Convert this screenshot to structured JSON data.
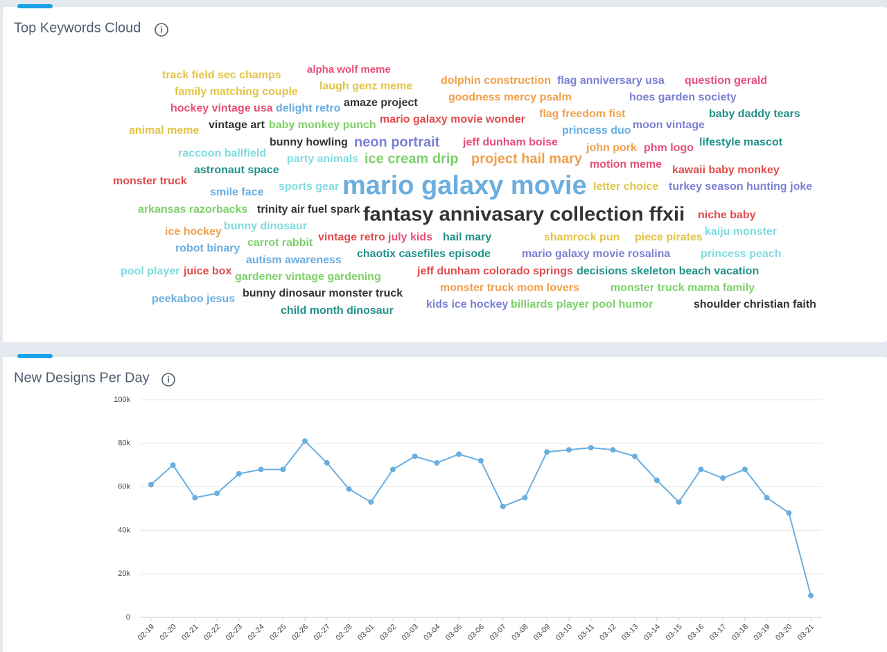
{
  "keyword_cloud": {
    "title": "Top Keywords Cloud",
    "keywords": [
      {
        "text": "track field sec champs",
        "color": "#e2c447"
      },
      {
        "text": "alpha wolf meme",
        "color": "#e6507a"
      },
      {
        "text": "dolphin construction",
        "color": "#f0a04b"
      },
      {
        "text": "flag anniversary usa",
        "color": "#7b7fd4"
      },
      {
        "text": "question gerald",
        "color": "#e6507a"
      },
      {
        "text": "family matching couple",
        "color": "#e2c447"
      },
      {
        "text": "laugh genz meme",
        "color": "#e2c447"
      },
      {
        "text": "goodness mercy psalm",
        "color": "#f0a04b"
      },
      {
        "text": "hoes garden society",
        "color": "#7b7fd4"
      },
      {
        "text": "hockey vintage usa",
        "color": "#e6507a"
      },
      {
        "text": "delight retro",
        "color": "#6aaee0"
      },
      {
        "text": "amaze project",
        "color": "#333333"
      },
      {
        "text": "flag freedom fist",
        "color": "#f0a04b"
      },
      {
        "text": "baby daddy tears",
        "color": "#22918a"
      },
      {
        "text": "mario galaxy movie wonder",
        "color": "#e04c4c"
      },
      {
        "text": "animal meme",
        "color": "#e2c447"
      },
      {
        "text": "vintage art",
        "color": "#333333"
      },
      {
        "text": "baby monkey punch",
        "color": "#7ed06b"
      },
      {
        "text": "princess duo",
        "color": "#6aaee0"
      },
      {
        "text": "moon vintage",
        "color": "#7b7fd4"
      },
      {
        "text": "bunny howling",
        "color": "#333333"
      },
      {
        "text": "neon portrait",
        "color": "#7b7fd4"
      },
      {
        "text": "jeff dunham boise",
        "color": "#e6507a"
      },
      {
        "text": "john pork",
        "color": "#f0a04b"
      },
      {
        "text": "phm logo",
        "color": "#e6507a"
      },
      {
        "text": "lifestyle mascot",
        "color": "#22918a"
      },
      {
        "text": "raccoon ballfield",
        "color": "#7fdbe0"
      },
      {
        "text": "party animals",
        "color": "#7fdbe0"
      },
      {
        "text": "ice cream drip",
        "color": "#7ed06b"
      },
      {
        "text": "project hail mary",
        "color": "#f0a04b"
      },
      {
        "text": "motion meme",
        "color": "#e6507a"
      },
      {
        "text": "kawaii baby monkey",
        "color": "#e04c4c"
      },
      {
        "text": "astronaut space",
        "color": "#22918a"
      },
      {
        "text": "monster truck",
        "color": "#e04c4c"
      },
      {
        "text": "smile face",
        "color": "#6aaee0"
      },
      {
        "text": "sports gear",
        "color": "#7fdbe0"
      },
      {
        "text": "mario galaxy movie",
        "color": "#6aaee0"
      },
      {
        "text": "letter choice",
        "color": "#e2c447"
      },
      {
        "text": "turkey season hunting joke",
        "color": "#7b7fd4"
      },
      {
        "text": "arkansas razorbacks",
        "color": "#7ed06b"
      },
      {
        "text": "trinity air fuel spark",
        "color": "#333333"
      },
      {
        "text": "fantasy annivasary collection ffxii",
        "color": "#333333"
      },
      {
        "text": "niche baby",
        "color": "#e04c4c"
      },
      {
        "text": "ice hockey",
        "color": "#f0a04b"
      },
      {
        "text": "bunny dinosaur",
        "color": "#7fdbe0"
      },
      {
        "text": "kaiju monster",
        "color": "#7fdbe0"
      },
      {
        "text": "robot binary",
        "color": "#6aaee0"
      },
      {
        "text": "carrot rabbit",
        "color": "#7ed06b"
      },
      {
        "text": "vintage retro",
        "color": "#e04c4c"
      },
      {
        "text": "july kids",
        "color": "#e6507a"
      },
      {
        "text": "hail mary",
        "color": "#22918a"
      },
      {
        "text": "shamrock pun",
        "color": "#e2c447"
      },
      {
        "text": "piece pirates",
        "color": "#e2c447"
      },
      {
        "text": "autism awareness",
        "color": "#6aaee0"
      },
      {
        "text": "chaotix casefiles episode",
        "color": "#22918a"
      },
      {
        "text": "mario galaxy movie rosalina",
        "color": "#7b7fd4"
      },
      {
        "text": "princess peach",
        "color": "#7fdbe0"
      },
      {
        "text": "pool player",
        "color": "#7fdbe0"
      },
      {
        "text": "juice box",
        "color": "#e04c4c"
      },
      {
        "text": "gardener vintage gardening",
        "color": "#7ed06b"
      },
      {
        "text": "jeff dunham colorado springs",
        "color": "#e04c4c"
      },
      {
        "text": "decisions skeleton beach vacation",
        "color": "#22918a"
      },
      {
        "text": "monster truck mom lovers",
        "color": "#f0a04b"
      },
      {
        "text": "monster truck mama family",
        "color": "#7ed06b"
      },
      {
        "text": "peekaboo jesus",
        "color": "#6aaee0"
      },
      {
        "text": "bunny dinosaur monster truck",
        "color": "#333333"
      },
      {
        "text": "kids ice hockey",
        "color": "#7b7fd4"
      },
      {
        "text": "billiards player pool humor",
        "color": "#7ed06b"
      },
      {
        "text": "shoulder christian faith",
        "color": "#333333"
      },
      {
        "text": "child month dinosaur",
        "color": "#22918a"
      }
    ]
  },
  "chart_data": {
    "type": "line",
    "title": "New Designs Per Day",
    "categories": [
      "02-19",
      "02-20",
      "02-21",
      "02-22",
      "02-23",
      "02-24",
      "02-25",
      "02-26",
      "02-27",
      "02-28",
      "03-01",
      "03-02",
      "03-03",
      "03-04",
      "03-05",
      "03-06",
      "03-07",
      "03-08",
      "03-09",
      "03-10",
      "03-11",
      "03-12",
      "03-13",
      "03-14",
      "03-15",
      "03-16",
      "03-17",
      "03-18",
      "03-19",
      "03-20",
      "03-21"
    ],
    "values": [
      61000,
      70000,
      55000,
      57000,
      66000,
      68000,
      68000,
      81000,
      71000,
      59000,
      53000,
      68000,
      74000,
      71000,
      75000,
      72000,
      51000,
      55000,
      76000,
      77000,
      78000,
      77000,
      74000,
      63000,
      53000,
      68000,
      64000,
      68000,
      55000,
      48000,
      10000
    ],
    "color": "#6aaee0",
    "ylim": [
      0,
      100000
    ],
    "yticks": [
      0,
      {
        "value": 20000,
        "label": "20k"
      },
      {
        "value": 40000,
        "label": "40k"
      },
      {
        "value": 60000,
        "label": "60k"
      },
      {
        "value": 80000,
        "label": "80k"
      },
      {
        "value": 100000,
        "label": "100k"
      }
    ],
    "grid": true
  }
}
